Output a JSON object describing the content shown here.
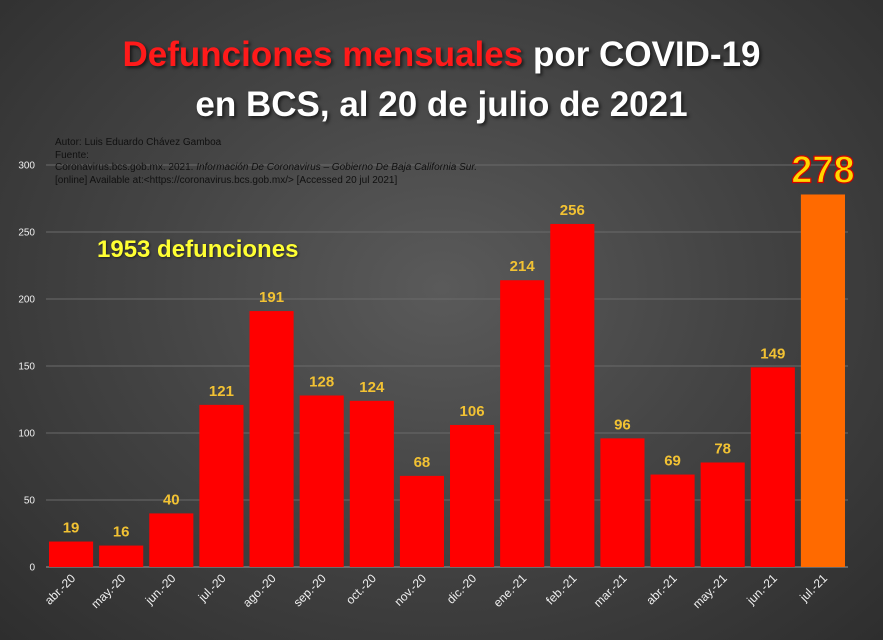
{
  "title": {
    "highlight": "Defunciones mensuales",
    "rest": " por COVID-19",
    "line2": "en BCS, al 20 de julio de 2021"
  },
  "source": {
    "author": "Autor: Luis Eduardo Chávez Gamboa",
    "fuente_label": "Fuente:",
    "citation_plain": "Coronavirus.bcs.gob.mx. 2021. ",
    "citation_italic": "Información De Coronavirus – Gobierno De Baja California Sur.",
    "online": "[online] Available at:<https://coronavirus.bcs.gob.mx/> [Accessed 20   jul 2021]"
  },
  "total_label": "1953 defunciones",
  "colors": {
    "bar": "#ff0000",
    "highlight_bar": "#ff6a00",
    "value_label": "#f2c233",
    "highlight_value": "#ffd700",
    "grid": "#6a6a6a",
    "axis_text": "#f0f0f0"
  },
  "chart_data": {
    "type": "bar",
    "categories": [
      "abr.-20",
      "may.-20",
      "jun.-20",
      "jul.-20",
      "ago.-20",
      "sep.-20",
      "oct.-20",
      "nov.-20",
      "dic.-20",
      "ene.-21",
      "feb.-21",
      "mar.-21",
      "abr.-21",
      "may.-21",
      "jun.-21",
      "jul.-21"
    ],
    "values": [
      19,
      16,
      40,
      121,
      191,
      128,
      124,
      68,
      106,
      214,
      256,
      96,
      69,
      78,
      149,
      278
    ],
    "highlight_index": 15,
    "yticks": [
      0,
      50,
      100,
      150,
      200,
      250,
      300
    ],
    "ylim": [
      0,
      300
    ],
    "grid": true,
    "legend": "none"
  }
}
